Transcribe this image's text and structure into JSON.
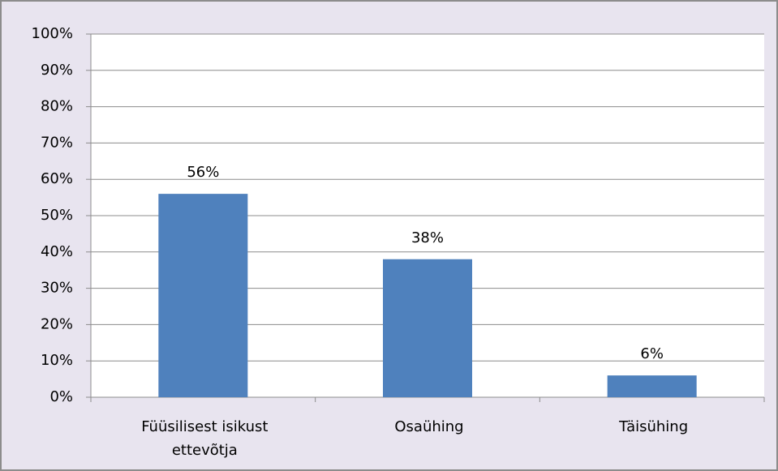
{
  "chart_data": {
    "type": "bar",
    "categories": [
      "Füüsilisest isikust ettevõtja",
      "Osaühing",
      "Täisühing"
    ],
    "values": [
      56,
      38,
      6
    ],
    "value_labels": [
      "56%",
      "38%",
      "6%"
    ],
    "color": "#4f81bd",
    "ylim": [
      0,
      100
    ],
    "yticks": [
      {
        "value": 0,
        "label": "0%"
      },
      {
        "value": 10,
        "label": "10%"
      },
      {
        "value": 20,
        "label": "20%"
      },
      {
        "value": 30,
        "label": "30%"
      },
      {
        "value": 40,
        "label": "40%"
      },
      {
        "value": 50,
        "label": "50%"
      },
      {
        "value": 60,
        "label": "60%"
      },
      {
        "value": 70,
        "label": "70%"
      },
      {
        "value": 80,
        "label": "80%"
      },
      {
        "value": 90,
        "label": "90%"
      },
      {
        "value": 100,
        "label": "100%"
      }
    ],
    "grid": true
  }
}
